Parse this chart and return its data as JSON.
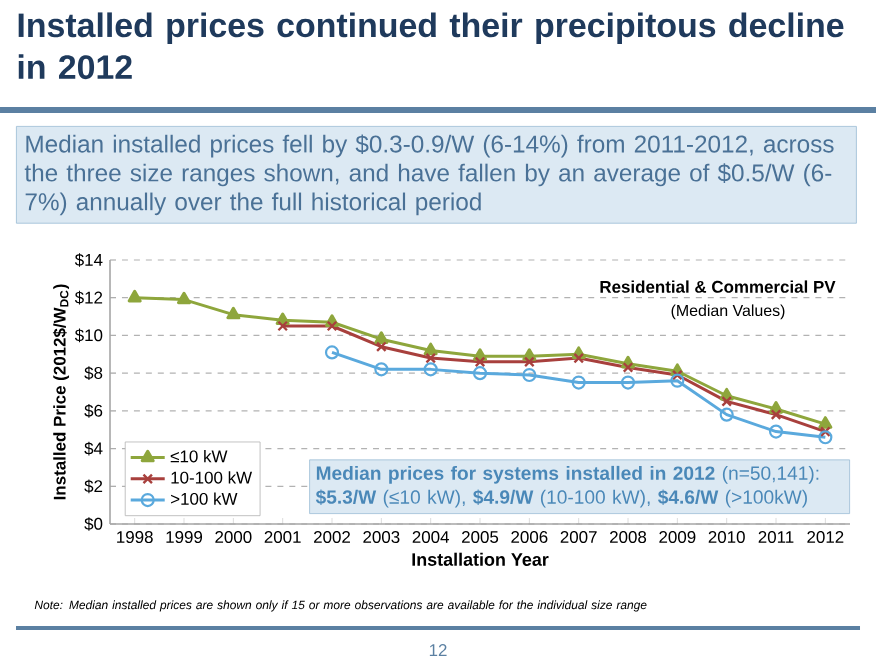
{
  "chart_data": {
    "type": "line",
    "title": "Installed prices continued their precipitous decline in 2012",
    "subtitle": "Median installed prices fell by $0.3-0.9/W (6-14%) from 2011-2012, across the three size ranges shown, and have fallen by an average of $0.5/W (6-7%) annually over the full historical period",
    "xlabel": "Installation Year",
    "ylabel": "Installed Price (2012$/W$_{DC}$)",
    "categories": [
      "1998",
      "1999",
      "2000",
      "2001",
      "2002",
      "2003",
      "2004",
      "2005",
      "2006",
      "2007",
      "2008",
      "2009",
      "2010",
      "2011",
      "2012"
    ],
    "series": [
      {
        "name": "≤10 kW",
        "color": "#8ea63c",
        "marker": "triangle",
        "values": [
          12.0,
          11.9,
          11.1,
          10.8,
          10.7,
          9.8,
          9.2,
          8.9,
          8.9,
          9.0,
          8.5,
          8.1,
          6.8,
          6.1,
          5.3
        ]
      },
      {
        "name": "10-100 kW",
        "color": "#a8403d",
        "marker": "cross",
        "values": [
          null,
          null,
          null,
          10.5,
          10.5,
          9.4,
          8.8,
          8.6,
          8.6,
          8.8,
          8.3,
          7.9,
          6.5,
          5.8,
          4.9
        ]
      },
      {
        "name": ">100 kW",
        "color": "#5aa9dd",
        "marker": "circle",
        "values": [
          null,
          null,
          null,
          null,
          9.1,
          8.2,
          8.2,
          8.0,
          7.9,
          7.5,
          7.5,
          7.6,
          5.8,
          4.9,
          4.6
        ]
      }
    ],
    "ylim": [
      0,
      14
    ],
    "yticks": [
      {
        "value": 0,
        "label": "$0"
      },
      {
        "value": 2,
        "label": "$2"
      },
      {
        "value": 4,
        "label": "$4"
      },
      {
        "value": 6,
        "label": "$6"
      },
      {
        "value": 8,
        "label": "$8"
      },
      {
        "value": 10,
        "label": "$10"
      },
      {
        "value": 12,
        "label": "$12"
      },
      {
        "value": 14,
        "label": "$14"
      }
    ],
    "grid": "y",
    "legend": "bottom left",
    "annotations": [
      "Residential & Commercial PV",
      "(Median Values)",
      "**Median prices for systems installed in 2012** (n=50,141): **$5.3/W** (≤10 kW), **$4.9/W** (10-100 kW), **$4.6/W** (>100kW)",
      "Note: Median installed prices are shown only if 15 or more observations are available for the individual size range",
      "12"
    ]
  }
}
